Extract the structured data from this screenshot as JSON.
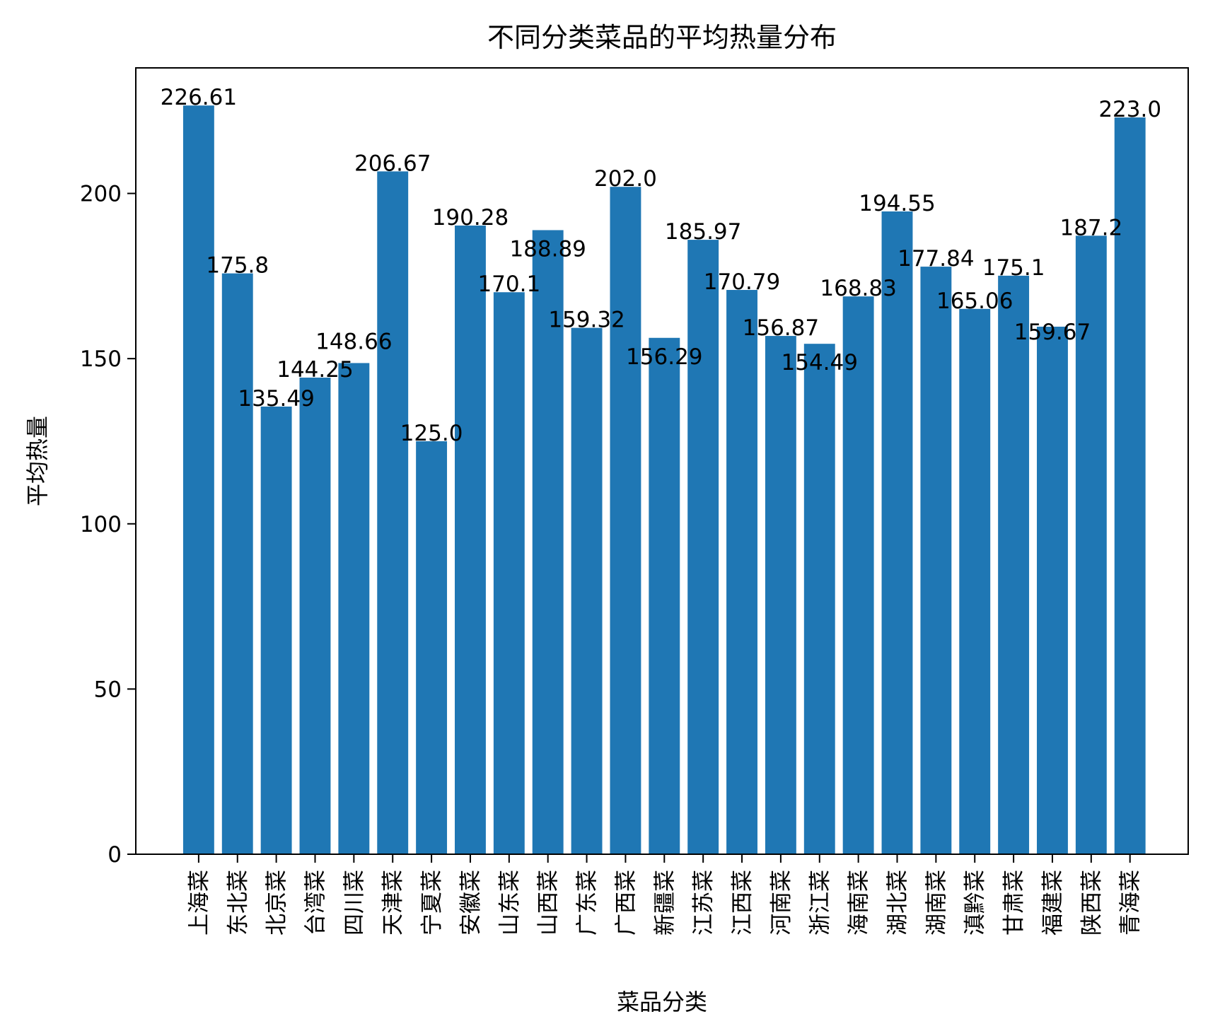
{
  "chart_data": {
    "type": "bar",
    "title": "不同分类菜品的平均热量分布",
    "xlabel": "菜品分类",
    "ylabel": "平均热量",
    "ylim": [
      0,
      238
    ],
    "yticks": [
      0,
      50,
      100,
      150,
      200
    ],
    "grid": false,
    "bar_color": "#1f77b4",
    "categories": [
      "上海菜",
      "东北菜",
      "北京菜",
      "台湾菜",
      "四川菜",
      "天津菜",
      "宁夏菜",
      "安徽菜",
      "山东菜",
      "山西菜",
      "广东菜",
      "广西菜",
      "新疆菜",
      "江苏菜",
      "江西菜",
      "河南菜",
      "浙江菜",
      "海南菜",
      "湖北菜",
      "湖南菜",
      "滇黔菜",
      "甘肃菜",
      "福建菜",
      "陕西菜",
      "青海菜"
    ],
    "values": [
      226.61,
      175.8,
      135.49,
      144.25,
      148.66,
      206.67,
      125.0,
      190.28,
      170.1,
      188.89,
      159.32,
      202.0,
      156.29,
      185.97,
      170.79,
      156.87,
      154.49,
      168.83,
      194.55,
      177.84,
      165.06,
      175.1,
      159.67,
      187.2,
      223.0
    ],
    "data_labels": [
      "226.61",
      "175.8",
      "135.49",
      "144.25",
      "148.66",
      "206.67",
      "125.0",
      "190.28",
      "170.1",
      "188.89",
      "159.32",
      "202.0",
      "156.29",
      "185.97",
      "170.79",
      "156.87",
      "154.49",
      "168.83",
      "194.55",
      "177.84",
      "165.06",
      "175.1",
      "159.67",
      "187.2",
      "223.0"
    ]
  }
}
